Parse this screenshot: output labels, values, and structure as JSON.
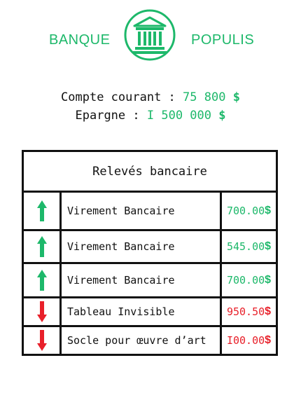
{
  "brand": {
    "left_word": "BANQUE",
    "right_word": "POPULIS",
    "logo_icon": "bank-building-icon",
    "color": "#1db86a"
  },
  "accounts": {
    "checking_label": "Compte courant :",
    "checking_value": "75 800",
    "savings_label": "Epargne :",
    "savings_value": "I 500 000",
    "currency": "$"
  },
  "statements": {
    "title": "Relevés bancaire",
    "rows": [
      {
        "direction": "up",
        "icon": "arrow-up-icon",
        "label": "Virement Bancaire",
        "amount": "700.00",
        "currency": "$"
      },
      {
        "direction": "up",
        "icon": "arrow-up-icon",
        "label": "Virement Bancaire",
        "amount": "545.00",
        "currency": "$"
      },
      {
        "direction": "up",
        "icon": "arrow-up-icon",
        "label": "Virement Bancaire",
        "amount": "700.00",
        "currency": "$"
      },
      {
        "direction": "down",
        "icon": "arrow-down-icon",
        "label": "Tableau Invisible",
        "amount": "950.50",
        "currency": "$"
      },
      {
        "direction": "down",
        "icon": "arrow-down-icon",
        "label": "Socle pour œuvre d’art",
        "amount": "I00.00",
        "currency": "$"
      }
    ]
  },
  "colors": {
    "credit": "#1db86a",
    "debit": "#e8202a"
  }
}
